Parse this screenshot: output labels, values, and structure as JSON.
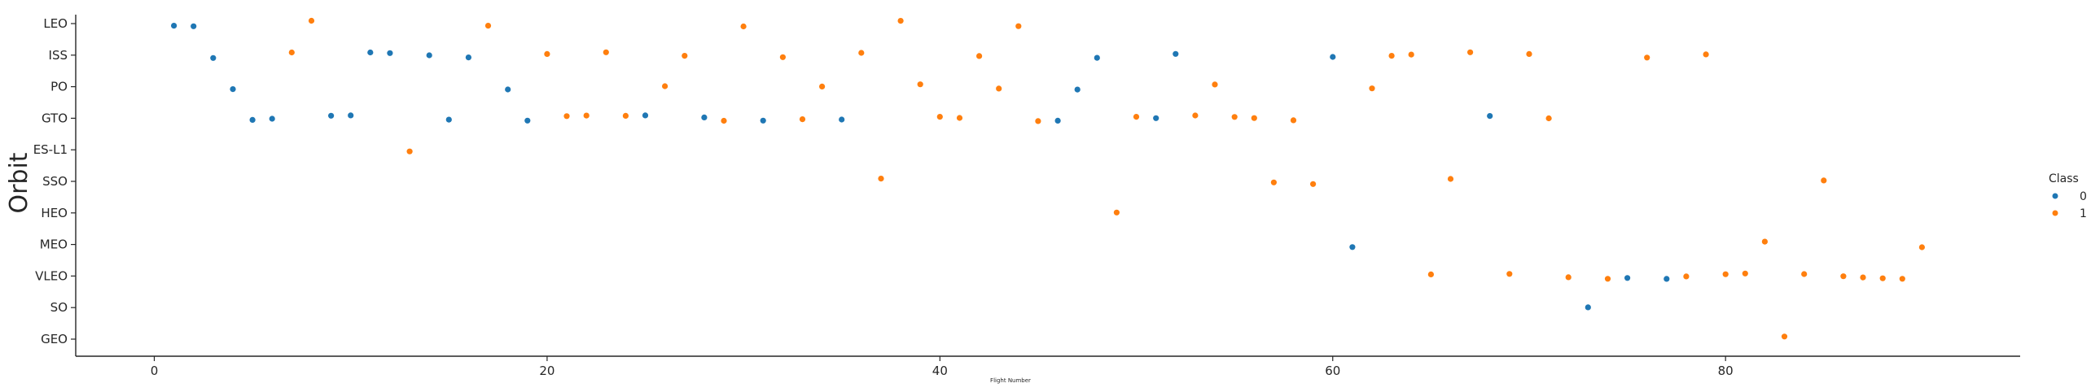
{
  "chart_data": {
    "type": "scatter",
    "xlabel": "Flight Number",
    "ylabel": "Orbit",
    "xlim": [
      -4,
      95
    ],
    "x_ticks": [
      0,
      20,
      40,
      60,
      80
    ],
    "categories": [
      "LEO",
      "ISS",
      "PO",
      "GTO",
      "ES-L1",
      "SSO",
      "HEO",
      "MEO",
      "VLEO",
      "SO",
      "GEO"
    ],
    "grid": false,
    "legend": {
      "title": "Class",
      "placement": "right",
      "entries": [
        "0",
        "1"
      ]
    },
    "series": [
      {
        "name": "0",
        "color": "#1f77b4",
        "points": [
          [
            1,
            "LEO"
          ],
          [
            2,
            "LEO"
          ],
          [
            3,
            "ISS"
          ],
          [
            4,
            "PO"
          ],
          [
            5,
            "GTO"
          ],
          [
            6,
            "GTO"
          ],
          [
            9,
            "GTO"
          ],
          [
            10,
            "GTO"
          ],
          [
            11,
            "ISS"
          ],
          [
            12,
            "ISS"
          ],
          [
            14,
            "ISS"
          ],
          [
            15,
            "GTO"
          ],
          [
            16,
            "ISS"
          ],
          [
            18,
            "PO"
          ],
          [
            19,
            "GTO"
          ],
          [
            25,
            "GTO"
          ],
          [
            28,
            "GTO"
          ],
          [
            31,
            "GTO"
          ],
          [
            35,
            "GTO"
          ],
          [
            46,
            "GTO"
          ],
          [
            47,
            "PO"
          ],
          [
            48,
            "ISS"
          ],
          [
            51,
            "GTO"
          ],
          [
            52,
            "ISS"
          ],
          [
            60,
            "ISS"
          ],
          [
            61,
            "MEO"
          ],
          [
            68,
            "GTO"
          ],
          [
            73,
            "SO"
          ],
          [
            75,
            "VLEO"
          ],
          [
            77,
            "VLEO"
          ]
        ]
      },
      {
        "name": "1",
        "color": "#ff7f0e",
        "points": [
          [
            7,
            "ISS"
          ],
          [
            8,
            "LEO"
          ],
          [
            13,
            "ES-L1"
          ],
          [
            17,
            "LEO"
          ],
          [
            20,
            "ISS"
          ],
          [
            21,
            "GTO"
          ],
          [
            22,
            "GTO"
          ],
          [
            23,
            "ISS"
          ],
          [
            24,
            "GTO"
          ],
          [
            26,
            "PO"
          ],
          [
            27,
            "ISS"
          ],
          [
            29,
            "GTO"
          ],
          [
            30,
            "LEO"
          ],
          [
            32,
            "ISS"
          ],
          [
            33,
            "GTO"
          ],
          [
            34,
            "PO"
          ],
          [
            36,
            "ISS"
          ],
          [
            37,
            "SSO"
          ],
          [
            38,
            "LEO"
          ],
          [
            39,
            "PO"
          ],
          [
            40,
            "GTO"
          ],
          [
            41,
            "GTO"
          ],
          [
            42,
            "ISS"
          ],
          [
            43,
            "PO"
          ],
          [
            44,
            "LEO"
          ],
          [
            45,
            "GTO"
          ],
          [
            49,
            "HEO"
          ],
          [
            50,
            "GTO"
          ],
          [
            53,
            "GTO"
          ],
          [
            54,
            "PO"
          ],
          [
            55,
            "GTO"
          ],
          [
            56,
            "GTO"
          ],
          [
            57,
            "SSO"
          ],
          [
            58,
            "GTO"
          ],
          [
            59,
            "SSO"
          ],
          [
            62,
            "PO"
          ],
          [
            63,
            "ISS"
          ],
          [
            64,
            "ISS"
          ],
          [
            65,
            "VLEO"
          ],
          [
            66,
            "SSO"
          ],
          [
            67,
            "ISS"
          ],
          [
            69,
            "VLEO"
          ],
          [
            70,
            "ISS"
          ],
          [
            71,
            "GTO"
          ],
          [
            72,
            "VLEO"
          ],
          [
            74,
            "VLEO"
          ],
          [
            76,
            "ISS"
          ],
          [
            78,
            "VLEO"
          ],
          [
            79,
            "ISS"
          ],
          [
            80,
            "VLEO"
          ],
          [
            81,
            "VLEO"
          ],
          [
            82,
            "MEO"
          ],
          [
            83,
            "GEO"
          ],
          [
            84,
            "VLEO"
          ],
          [
            85,
            "SSO"
          ],
          [
            86,
            "VLEO"
          ],
          [
            87,
            "VLEO"
          ],
          [
            88,
            "VLEO"
          ],
          [
            89,
            "VLEO"
          ],
          [
            90,
            "MEO"
          ]
        ]
      }
    ]
  }
}
